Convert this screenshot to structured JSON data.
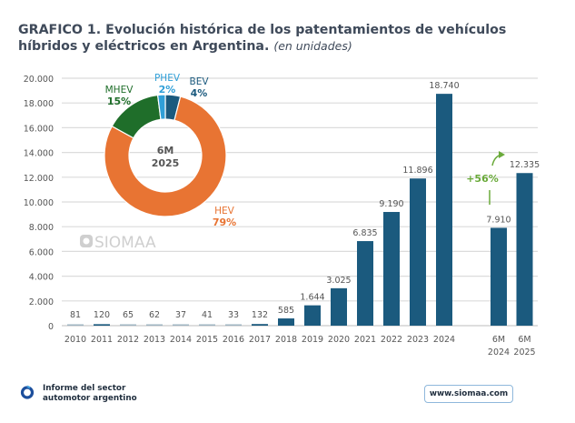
{
  "title": {
    "main": "GRAFICO 1. Evolución histórica de los patentamientos de vehículos híbridos y eléctricos en Argentina.",
    "unit": "(en unidades)"
  },
  "watermark": "SIOMAA",
  "footer": {
    "line1": "Informe del sector",
    "line2": "automotor argentino",
    "url": "www.siomaa.com"
  },
  "colors": {
    "bar": "#1b5a7e",
    "bar_light": "#9fb4c2",
    "hev": "#e87433",
    "mhev": "#1f6e2a",
    "phev": "#2f9fd8",
    "bev": "#1b5a7e",
    "growth": "#6aaa3a",
    "grid": "#dcdcdc",
    "label": "#555555"
  },
  "chart_data": [
    {
      "type": "bar",
      "title": "Patentamientos de vehículos híbridos y eléctricos",
      "xlabel": "",
      "ylabel": "unidades",
      "ylim": [
        0,
        20000
      ],
      "yticks": [
        0,
        2000,
        4000,
        6000,
        8000,
        10000,
        12000,
        14000,
        16000,
        18000,
        20000
      ],
      "ytick_labels": [
        "0",
        "2.000",
        "4.000",
        "6.000",
        "8.000",
        "10.000",
        "12.000",
        "14.000",
        "16.000",
        "18.000",
        "20.000"
      ],
      "grid": true,
      "categories": [
        "2010",
        "2011",
        "2012",
        "2013",
        "2014",
        "2015",
        "2016",
        "2017",
        "2018",
        "2019",
        "2020",
        "2021",
        "2022",
        "2023",
        "2024",
        "6M 2024",
        "6M 2025"
      ],
      "values": [
        81,
        120,
        65,
        62,
        37,
        41,
        33,
        132,
        585,
        1644,
        3025,
        6835,
        9190,
        11896,
        18740,
        7910,
        12335
      ],
      "value_labels": [
        "81",
        "120",
        "65",
        "62",
        "37",
        "41",
        "33",
        "132",
        "585",
        "1.644",
        "3.025",
        "6.835",
        "9.190",
        "11.896",
        "18.740",
        "7.910",
        "12.335"
      ],
      "annotation": {
        "text": "+56%",
        "from": "6M 2024",
        "to": "6M 2025"
      }
    },
    {
      "type": "pie",
      "title": "6M 2025",
      "center_label": [
        "6M",
        "2025"
      ],
      "slices": [
        {
          "name": "BEV",
          "value": 4,
          "label": "4%"
        },
        {
          "name": "HEV",
          "value": 79,
          "label": "79%"
        },
        {
          "name": "MHEV",
          "value": 15,
          "label": "15%"
        },
        {
          "name": "PHEV",
          "value": 2,
          "label": "2%"
        }
      ]
    }
  ]
}
